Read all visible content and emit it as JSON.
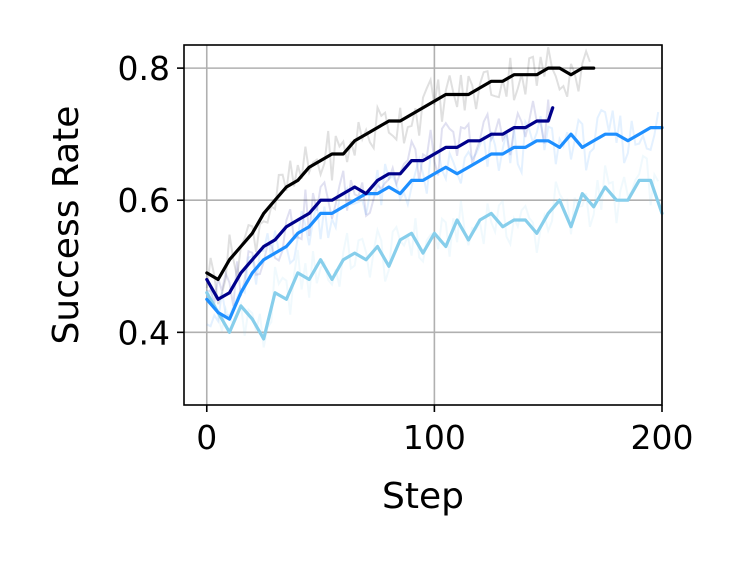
{
  "chart_data": {
    "type": "line",
    "xlabel": "Step",
    "ylabel": "Success Rate",
    "xlim": [
      -10,
      200
    ],
    "ylim": [
      0.29,
      0.835
    ],
    "xticks": [
      0,
      100,
      200
    ],
    "yticks": [
      0.4,
      0.6,
      0.8
    ],
    "xtick_labels": [
      "0",
      "100",
      "200"
    ],
    "ytick_labels": [
      "0.4",
      "0.6",
      "0.8"
    ],
    "grid": true,
    "legend": "none",
    "series": [
      {
        "color": "#87ceeb",
        "x": [
          0,
          5,
          10,
          15,
          20,
          25,
          30,
          35,
          40,
          45,
          50,
          55,
          60,
          65,
          70,
          75,
          80,
          85,
          90,
          95,
          100,
          105,
          110,
          115,
          120,
          125,
          130,
          135,
          140,
          145,
          150,
          155,
          160,
          165,
          170,
          175,
          180,
          185,
          190,
          195,
          200
        ],
        "y": [
          0.46,
          0.43,
          0.4,
          0.44,
          0.42,
          0.39,
          0.46,
          0.45,
          0.49,
          0.48,
          0.51,
          0.48,
          0.51,
          0.52,
          0.51,
          0.53,
          0.5,
          0.54,
          0.55,
          0.52,
          0.55,
          0.53,
          0.57,
          0.54,
          0.57,
          0.58,
          0.56,
          0.57,
          0.57,
          0.55,
          0.58,
          0.6,
          0.56,
          0.61,
          0.59,
          0.62,
          0.6,
          0.6,
          0.63,
          0.63,
          0.58
        ]
      },
      {
        "color": "#1e8fff",
        "x": [
          0,
          5,
          10,
          15,
          20,
          25,
          30,
          35,
          40,
          45,
          50,
          55,
          60,
          65,
          70,
          75,
          80,
          85,
          90,
          95,
          100,
          105,
          110,
          115,
          120,
          125,
          130,
          135,
          140,
          145,
          150,
          155,
          160,
          165,
          170,
          175,
          180,
          185,
          190,
          195,
          200
        ],
        "y": [
          0.45,
          0.43,
          0.42,
          0.46,
          0.49,
          0.51,
          0.52,
          0.53,
          0.55,
          0.56,
          0.58,
          0.58,
          0.59,
          0.6,
          0.61,
          0.61,
          0.62,
          0.61,
          0.63,
          0.63,
          0.64,
          0.65,
          0.64,
          0.65,
          0.66,
          0.67,
          0.67,
          0.68,
          0.68,
          0.69,
          0.69,
          0.68,
          0.7,
          0.68,
          0.69,
          0.7,
          0.7,
          0.69,
          0.7,
          0.71,
          0.71
        ]
      },
      {
        "color": "#00008b",
        "x": [
          0,
          5,
          10,
          15,
          20,
          25,
          30,
          35,
          40,
          45,
          50,
          55,
          60,
          65,
          70,
          75,
          80,
          85,
          90,
          95,
          100,
          105,
          110,
          115,
          120,
          125,
          130,
          135,
          140,
          145,
          150,
          152
        ],
        "y": [
          0.48,
          0.45,
          0.46,
          0.49,
          0.51,
          0.53,
          0.54,
          0.56,
          0.57,
          0.58,
          0.6,
          0.6,
          0.61,
          0.62,
          0.61,
          0.63,
          0.64,
          0.64,
          0.66,
          0.66,
          0.67,
          0.68,
          0.68,
          0.69,
          0.69,
          0.7,
          0.7,
          0.71,
          0.71,
          0.72,
          0.72,
          0.74
        ]
      },
      {
        "color": "#000000",
        "x": [
          0,
          5,
          10,
          15,
          20,
          25,
          30,
          35,
          40,
          45,
          50,
          55,
          60,
          65,
          70,
          75,
          80,
          85,
          90,
          95,
          100,
          105,
          110,
          115,
          120,
          125,
          130,
          135,
          140,
          145,
          150,
          155,
          160,
          165,
          170
        ],
        "y": [
          0.49,
          0.48,
          0.51,
          0.53,
          0.55,
          0.58,
          0.6,
          0.62,
          0.63,
          0.65,
          0.66,
          0.67,
          0.67,
          0.69,
          0.7,
          0.71,
          0.72,
          0.72,
          0.73,
          0.74,
          0.75,
          0.76,
          0.76,
          0.76,
          0.77,
          0.78,
          0.78,
          0.79,
          0.79,
          0.79,
          0.8,
          0.8,
          0.79,
          0.8,
          0.8
        ]
      }
    ]
  }
}
